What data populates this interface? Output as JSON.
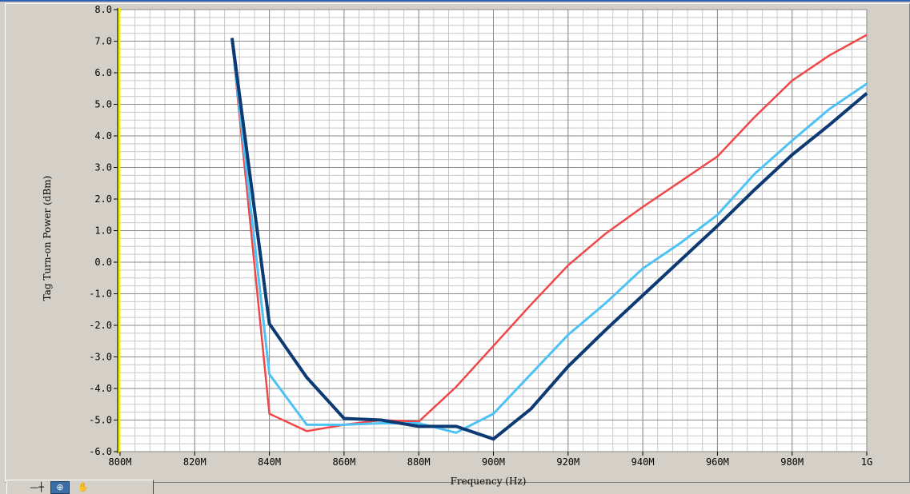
{
  "tools": [
    {
      "name": "cursor-tool-icon",
      "glyph": "—┼"
    },
    {
      "name": "zoom-tool-icon",
      "glyph": "⊕"
    },
    {
      "name": "pan-tool-icon",
      "glyph": "✋"
    }
  ],
  "chart_data": {
    "type": "line",
    "title": "",
    "xlabel": "Frequency (Hz)",
    "ylabel": "Tag Turn-on Power (dBm)",
    "xlim": [
      800,
      1000
    ],
    "ylim": [
      -6,
      8
    ],
    "x_ticks": [
      800,
      820,
      840,
      860,
      880,
      900,
      920,
      940,
      960,
      980,
      1000
    ],
    "x_tick_labels": [
      "800M",
      "820M",
      "840M",
      "860M",
      "880M",
      "900M",
      "920M",
      "940M",
      "960M",
      "980M",
      "1G"
    ],
    "y_ticks": [
      -6,
      -5,
      -4,
      -3,
      -2,
      -1,
      0,
      1,
      2,
      3,
      4,
      5,
      6,
      7,
      8
    ],
    "y_tick_labels": [
      "-6.0",
      "-5.0",
      "-4.0",
      "-3.0",
      "-2.0",
      "-1.0",
      "0.0",
      "1.0",
      "2.0",
      "3.0",
      "4.0",
      "5.0",
      "6.0",
      "7.0",
      "8.0"
    ],
    "grid": true,
    "background": "#ffffff",
    "grid_color": "#c8c8c8",
    "y_axis_color": "#f2f200",
    "series": [
      {
        "color": "#f04848",
        "x": [
          830,
          840,
          850,
          860,
          870,
          880,
          890,
          900,
          910,
          920,
          930,
          940,
          950,
          960,
          970,
          980,
          990,
          1000
        ],
        "y": [
          7.0,
          -4.8,
          -5.35,
          -5.15,
          -5.0,
          -5.05,
          -3.95,
          -2.65,
          -1.35,
          -0.1,
          0.9,
          1.75,
          2.55,
          3.35,
          4.6,
          5.75,
          6.55,
          7.2
        ]
      },
      {
        "color": "#4ec2f5",
        "x": [
          830,
          840,
          850,
          860,
          870,
          880,
          890,
          900,
          910,
          920,
          930,
          940,
          950,
          960,
          970,
          980,
          990,
          1000
        ],
        "y": [
          7.0,
          -3.55,
          -5.15,
          -5.15,
          -5.1,
          -5.1,
          -5.4,
          -4.8,
          -3.55,
          -2.3,
          -1.3,
          -0.2,
          0.6,
          1.5,
          2.8,
          3.85,
          4.85,
          5.65
        ]
      },
      {
        "color": "#0d3a73",
        "x": [
          830,
          840,
          850,
          860,
          870,
          880,
          890,
          900,
          910,
          920,
          930,
          940,
          950,
          960,
          970,
          980,
          990,
          1000
        ],
        "y": [
          7.1,
          -1.95,
          -3.65,
          -4.95,
          -5.0,
          -5.2,
          -5.2,
          -5.6,
          -4.65,
          -3.3,
          -2.15,
          -1.05,
          0.05,
          1.15,
          2.3,
          3.4,
          4.35,
          5.35
        ]
      }
    ]
  }
}
